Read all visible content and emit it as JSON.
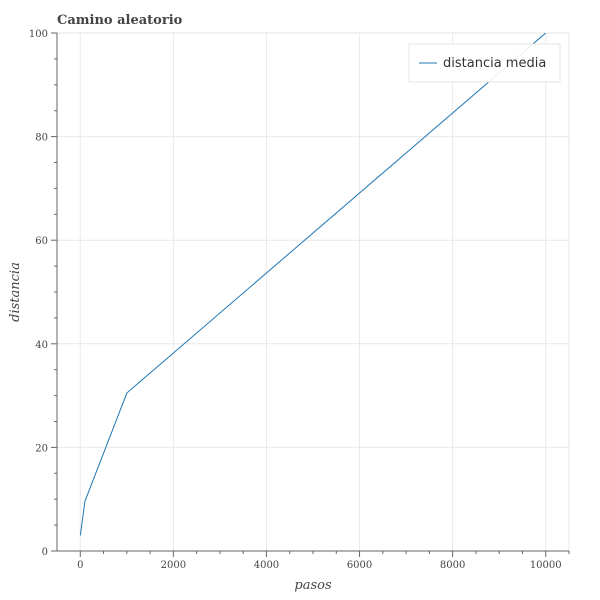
{
  "chart_data": {
    "type": "line",
    "title": "Camino aleatorio",
    "xlabel": "pasos",
    "ylabel": "distancia",
    "xlim": [
      -500,
      10500
    ],
    "ylim": [
      0,
      100
    ],
    "x_ticks": [
      0,
      2000,
      4000,
      6000,
      8000,
      10000
    ],
    "x_tick_labels": [
      "0",
      "2000",
      "4000",
      "6000",
      "8000",
      "10000"
    ],
    "y_ticks": [
      0,
      20,
      40,
      60,
      80,
      100
    ],
    "y_tick_labels": [
      "0",
      "20",
      "40",
      "60",
      "80",
      "100"
    ],
    "grid": true,
    "legend_position": "top-right",
    "series": [
      {
        "name": "distancia media",
        "color": "#1f77b4",
        "x": [
          1,
          100,
          1000,
          10000
        ],
        "y": [
          3.0,
          9.6,
          30.5,
          100
        ]
      }
    ]
  }
}
